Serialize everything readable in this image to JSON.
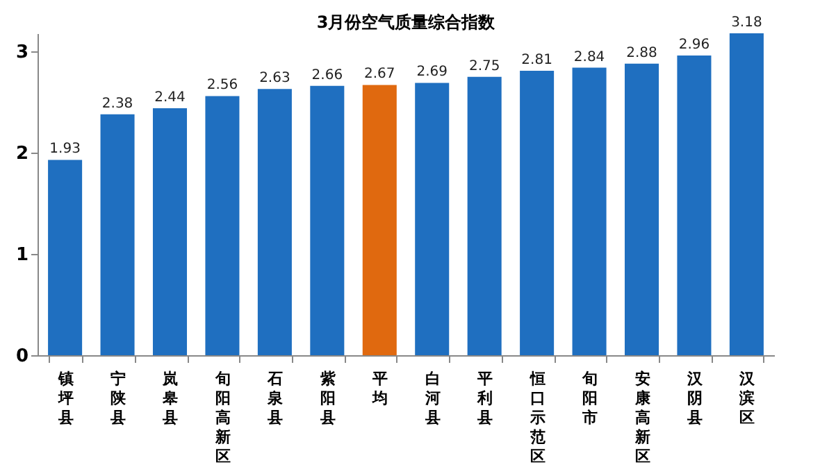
{
  "chart_data": {
    "type": "bar",
    "title": "3月份空气质量综合指数",
    "categories": [
      "镇坪县",
      "宁陕县",
      "岚皋县",
      "旬阳高新区",
      "石泉县",
      "紫阳县",
      "平均",
      "白河县",
      "平利县",
      "恒口示范区",
      "旬阳市",
      "安康高新区",
      "汉阴县",
      "汉滨区"
    ],
    "values": [
      1.93,
      2.38,
      2.44,
      2.56,
      2.63,
      2.66,
      2.67,
      2.69,
      2.75,
      2.81,
      2.84,
      2.88,
      2.96,
      3.18
    ],
    "colors": [
      "#1f6fc0",
      "#1f6fc0",
      "#1f6fc0",
      "#1f6fc0",
      "#1f6fc0",
      "#1f6fc0",
      "#e0690f",
      "#1f6fc0",
      "#1f6fc0",
      "#1f6fc0",
      "#1f6fc0",
      "#1f6fc0",
      "#1f6fc0",
      "#1f6fc0"
    ],
    "ylim": [
      0,
      3.18
    ],
    "yticks": [
      0,
      1,
      2,
      3
    ],
    "data_labels": true
  }
}
